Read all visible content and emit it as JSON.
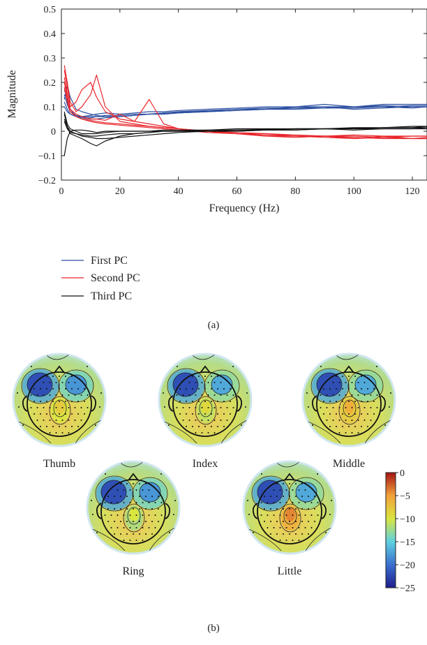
{
  "chart_data": [
    {
      "type": "line",
      "panel_label": "(a)",
      "xlabel": "Frequency (Hz)",
      "ylabel": "Magnitude",
      "xlim": [
        0,
        125
      ],
      "ylim": [
        -0.2,
        0.5
      ],
      "xticks": [
        "0",
        "20",
        "40",
        "60",
        "80",
        "100",
        "120"
      ],
      "yticks": [
        "−0.2",
        "−0.1",
        "0",
        "0.1",
        "0.2",
        "0.3",
        "0.4",
        "0.5"
      ],
      "grid": false,
      "legend_position": "below",
      "x": [
        1,
        2,
        3,
        5,
        7,
        10,
        12,
        15,
        20,
        25,
        30,
        35,
        40,
        50,
        60,
        70,
        80,
        90,
        100,
        110,
        120,
        125
      ],
      "series": [
        {
          "name": "First PC",
          "color": "#2b4ea0",
          "group": 0,
          "values": [
            0.17,
            0.13,
            0.09,
            0.06,
            0.055,
            0.05,
            0.05,
            0.055,
            0.06,
            0.065,
            0.07,
            0.075,
            0.078,
            0.082,
            0.09,
            0.09,
            0.095,
            0.095,
            0.1,
            0.1,
            0.105,
            0.105
          ]
        },
        {
          "name": "",
          "color": "#2b4ea0",
          "group": 0,
          "values": [
            0.13,
            0.19,
            0.14,
            0.09,
            0.08,
            0.07,
            0.065,
            0.06,
            0.06,
            0.065,
            0.07,
            0.072,
            0.075,
            0.08,
            0.085,
            0.09,
            0.1,
            0.1,
            0.1,
            0.105,
            0.1,
            0.1
          ]
        },
        {
          "name": "",
          "color": "#2b4ea0",
          "group": 0,
          "values": [
            0.1,
            0.08,
            0.07,
            0.06,
            0.06,
            0.065,
            0.07,
            0.075,
            0.07,
            0.075,
            0.08,
            0.08,
            0.085,
            0.09,
            0.095,
            0.1,
            0.1,
            0.11,
            0.1,
            0.11,
            0.11,
            0.11
          ]
        },
        {
          "name": "",
          "color": "#2b4ea0",
          "group": 0,
          "values": [
            0.15,
            0.11,
            0.08,
            0.065,
            0.06,
            0.06,
            0.06,
            0.065,
            0.065,
            0.07,
            0.07,
            0.075,
            0.08,
            0.085,
            0.09,
            0.095,
            0.095,
            0.1,
            0.09,
            0.095,
            0.1,
            0.1
          ]
        },
        {
          "name": "",
          "color": "#2b4ea0",
          "group": 0,
          "values": [
            0.12,
            0.09,
            0.07,
            0.06,
            0.055,
            0.055,
            0.06,
            0.06,
            0.06,
            0.065,
            0.07,
            0.07,
            0.075,
            0.08,
            0.085,
            0.09,
            0.09,
            0.095,
            0.095,
            0.1,
            0.095,
            0.1
          ]
        },
        {
          "name": "Second PC",
          "color": "#e8262c",
          "group": 1,
          "values": [
            0.27,
            0.2,
            0.12,
            0.08,
            0.1,
            0.15,
            0.23,
            0.1,
            0.04,
            0.03,
            0.02,
            0.015,
            0.01,
            0.0,
            -0.01,
            -0.02,
            -0.02,
            -0.025,
            -0.03,
            -0.02,
            -0.03,
            -0.03
          ]
        },
        {
          "name": "",
          "color": "#e8262c",
          "group": 1,
          "values": [
            0.25,
            0.18,
            0.1,
            0.12,
            0.17,
            0.2,
            0.14,
            0.08,
            0.05,
            0.04,
            0.13,
            0.03,
            0.01,
            0.0,
            -0.01,
            -0.01,
            -0.02,
            -0.02,
            -0.02,
            -0.025,
            -0.02,
            -0.02
          ]
        },
        {
          "name": "",
          "color": "#e8262c",
          "group": 1,
          "values": [
            0.22,
            0.15,
            0.08,
            0.06,
            0.05,
            0.04,
            0.035,
            0.03,
            0.025,
            0.02,
            0.015,
            0.01,
            0.005,
            -0.005,
            -0.01,
            -0.015,
            -0.02,
            -0.02,
            -0.025,
            -0.03,
            -0.03,
            -0.03
          ]
        },
        {
          "name": "",
          "color": "#e8262c",
          "group": 1,
          "values": [
            0.2,
            0.14,
            0.09,
            0.07,
            0.06,
            0.05,
            0.05,
            0.045,
            0.07,
            0.04,
            0.03,
            0.02,
            0.01,
            0.0,
            -0.005,
            -0.01,
            -0.015,
            -0.02,
            -0.015,
            -0.02,
            -0.02,
            -0.02
          ]
        },
        {
          "name": "",
          "color": "#e8262c",
          "group": 1,
          "values": [
            0.18,
            0.12,
            0.08,
            0.06,
            0.05,
            0.045,
            0.04,
            0.035,
            0.03,
            0.025,
            0.02,
            0.015,
            0.01,
            -0.005,
            -0.01,
            -0.02,
            -0.025,
            -0.02,
            -0.03,
            -0.025,
            -0.03,
            -0.025
          ]
        },
        {
          "name": "Third PC",
          "color": "#111111",
          "group": 2,
          "values": [
            -0.1,
            -0.03,
            0.0,
            0.005,
            0.005,
            0.0,
            -0.005,
            0.0,
            0.0,
            0.0,
            0.0,
            0.0,
            0.0,
            0.005,
            0.005,
            0.008,
            0.01,
            0.01,
            0.012,
            0.015,
            0.015,
            0.02
          ]
        },
        {
          "name": "",
          "color": "#111111",
          "group": 2,
          "values": [
            0.07,
            0.02,
            -0.01,
            -0.02,
            -0.03,
            -0.05,
            -0.06,
            -0.04,
            -0.02,
            -0.01,
            -0.005,
            0.0,
            0.0,
            0.0,
            0.0,
            0.005,
            0.005,
            0.01,
            0.01,
            0.01,
            0.01,
            0.015
          ]
        },
        {
          "name": "",
          "color": "#111111",
          "group": 2,
          "values": [
            0.05,
            0.02,
            0.0,
            -0.01,
            -0.02,
            -0.025,
            -0.03,
            -0.03,
            -0.025,
            -0.02,
            -0.015,
            -0.01,
            -0.005,
            0.0,
            0.0,
            0.005,
            0.005,
            0.01,
            0.005,
            0.01,
            0.01,
            0.01
          ]
        },
        {
          "name": "",
          "color": "#111111",
          "group": 2,
          "values": [
            0.04,
            0.01,
            -0.005,
            -0.01,
            -0.015,
            -0.02,
            -0.02,
            -0.015,
            -0.01,
            -0.01,
            -0.005,
            0.0,
            0.0,
            0.0,
            0.005,
            0.005,
            0.01,
            0.01,
            0.01,
            0.015,
            0.015,
            0.015
          ]
        },
        {
          "name": "",
          "color": "#111111",
          "group": 2,
          "values": [
            0.08,
            0.03,
            0.01,
            0.0,
            -0.01,
            -0.01,
            -0.01,
            -0.005,
            0.0,
            0.0,
            0.0,
            0.005,
            0.005,
            0.005,
            0.01,
            0.01,
            0.01,
            0.01,
            0.015,
            0.015,
            0.02,
            0.02
          ]
        }
      ],
      "legend": [
        "First PC",
        "Second PC",
        "Third PC"
      ]
    },
    {
      "type": "heatmap",
      "panel_label": "(b)",
      "maps": [
        {
          "label": "Thumb",
          "left": -22,
          "right": -18,
          "posterior": -8
        },
        {
          "label": "Index",
          "left": -22,
          "right": -17,
          "posterior": -9
        },
        {
          "label": "Middle",
          "left": -22,
          "right": -17,
          "posterior": -6
        },
        {
          "label": "Ring",
          "left": -22,
          "right": -18,
          "posterior": -10
        },
        {
          "label": "Little",
          "left": -22,
          "right": -17,
          "posterior": -4
        }
      ],
      "colorbar": {
        "min": -25,
        "max": 0,
        "ticks": [
          "0",
          "−5",
          "−10",
          "−15",
          "−20",
          "−25"
        ]
      }
    }
  ]
}
